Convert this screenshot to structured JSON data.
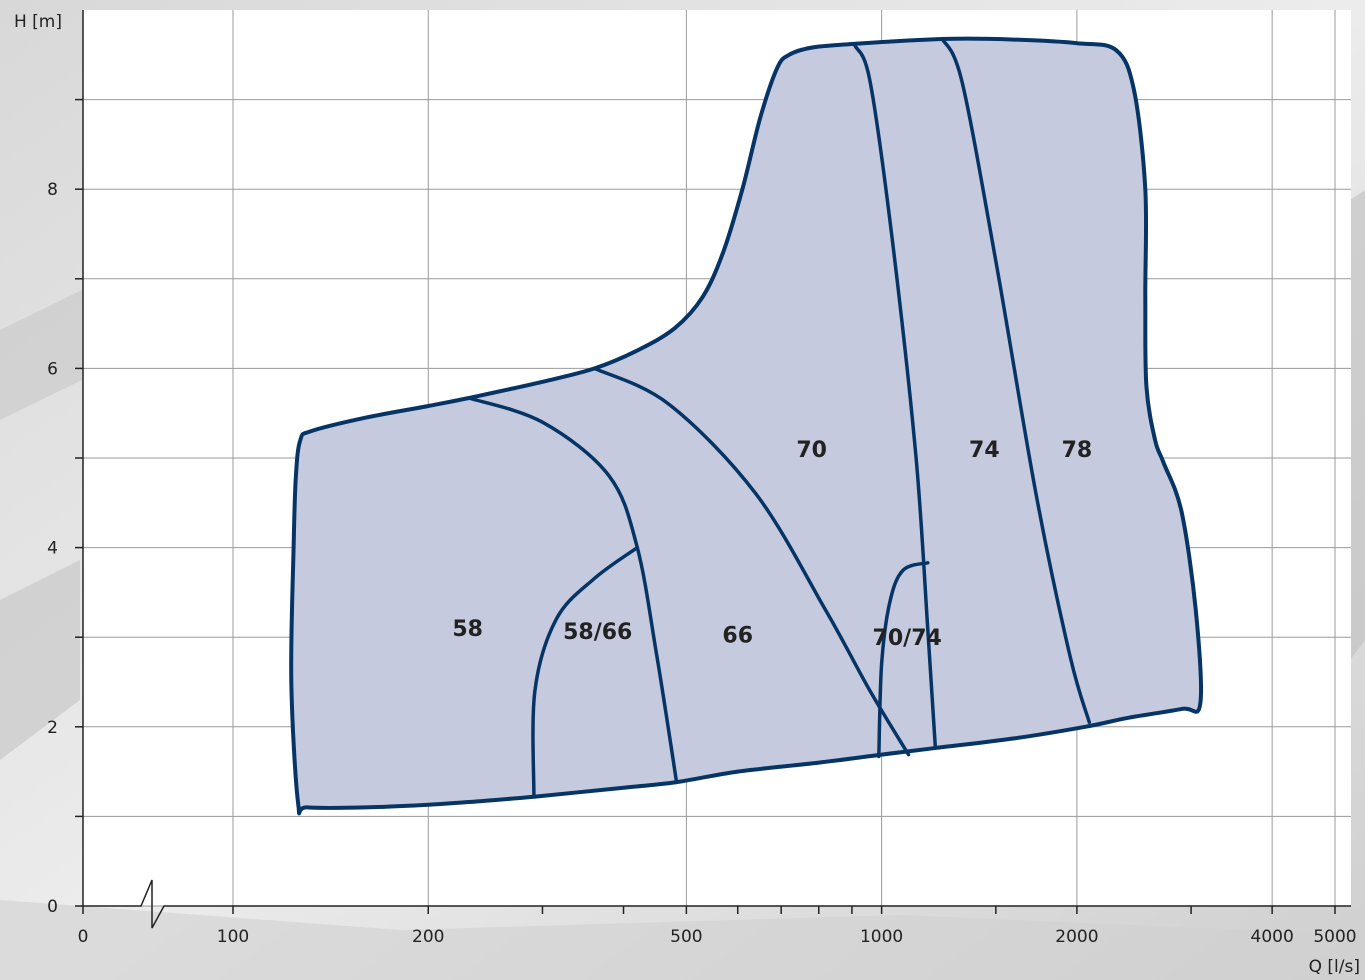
{
  "chart_data": {
    "type": "area",
    "title": "",
    "xlabel": "Q [l/s]",
    "ylabel": "H [m]",
    "x_scale": "log",
    "x_axis_break": true,
    "xlim": [
      0,
      5000
    ],
    "ylim": [
      0,
      10
    ],
    "grid": true,
    "x_ticks": [
      {
        "value": 0,
        "label": "0"
      },
      {
        "value": 100,
        "label": "100"
      },
      {
        "value": 200,
        "label": "200"
      },
      {
        "value": 500,
        "label": "500"
      },
      {
        "value": 1000,
        "label": "1000"
      },
      {
        "value": 2000,
        "label": "2000"
      },
      {
        "value": 4000,
        "label": "4000"
      },
      {
        "value": 5000,
        "label": "5000"
      }
    ],
    "y_ticks": [
      {
        "value": 0,
        "label": "0"
      },
      {
        "value": 2,
        "label": "2"
      },
      {
        "value": 4,
        "label": "4"
      },
      {
        "value": 6,
        "label": "6"
      },
      {
        "value": 8,
        "label": "8"
      }
    ],
    "colors": {
      "fill": "#c5cadf",
      "stroke": "#063565",
      "grid": "#9a9a9a",
      "plot_bg": "#ffffff"
    },
    "envelope": [
      [
        127,
        5.2
      ],
      [
        132,
        5.3
      ],
      [
        160,
        5.45
      ],
      [
        200,
        5.58
      ],
      [
        231,
        5.67
      ],
      [
        300,
        5.85
      ],
      [
        361,
        6.0
      ],
      [
        420,
        6.2
      ],
      [
        480,
        6.45
      ],
      [
        530,
        6.8
      ],
      [
        570,
        7.3
      ],
      [
        610,
        8.0
      ],
      [
        650,
        8.8
      ],
      [
        690,
        9.35
      ],
      [
        720,
        9.5
      ],
      [
        780,
        9.58
      ],
      [
        900,
        9.62
      ],
      [
        1100,
        9.66
      ],
      [
        1300,
        9.68
      ],
      [
        1600,
        9.67
      ],
      [
        2000,
        9.63
      ],
      [
        2300,
        9.55
      ],
      [
        2450,
        9.1
      ],
      [
        2550,
        8.0
      ],
      [
        2550,
        6.8
      ],
      [
        2560,
        5.8
      ],
      [
        2640,
        5.2
      ],
      [
        2720,
        4.95
      ],
      [
        2900,
        4.4
      ],
      [
        3050,
        3.3
      ],
      [
        3100,
        2.26
      ],
      [
        2900,
        2.2
      ],
      [
        2400,
        2.1
      ],
      [
        2060,
        2.0
      ],
      [
        1600,
        1.87
      ],
      [
        1200,
        1.76
      ],
      [
        1000,
        1.69
      ],
      [
        800,
        1.6
      ],
      [
        600,
        1.5
      ],
      [
        480,
        1.38
      ],
      [
        400,
        1.32
      ],
      [
        291,
        1.22
      ],
      [
        240,
        1.17
      ],
      [
        200,
        1.13
      ],
      [
        160,
        1.1
      ],
      [
        130,
        1.1
      ],
      [
        126,
        1.15
      ],
      [
        123,
        2.5
      ],
      [
        124,
        4.0
      ],
      [
        125,
        4.8
      ],
      [
        127,
        5.2
      ]
    ],
    "boundaries": [
      {
        "name": "58 | 66",
        "points": [
          [
            231,
            5.67
          ],
          [
            300,
            5.4
          ],
          [
            380,
            4.8
          ],
          [
            420,
            4.0
          ],
          [
            450,
            2.8
          ],
          [
            483,
            1.38
          ]
        ]
      },
      {
        "name": "58/66 arc",
        "points": [
          [
            420,
            4.0
          ],
          [
            360,
            3.65
          ],
          [
            315,
            3.2
          ],
          [
            292,
            2.4
          ],
          [
            291,
            1.22
          ]
        ]
      },
      {
        "name": "66 | 70",
        "points": [
          [
            361,
            6.0
          ],
          [
            470,
            5.6
          ],
          [
            640,
            4.6
          ],
          [
            820,
            3.3
          ],
          [
            960,
            2.4
          ],
          [
            1100,
            1.69
          ]
        ]
      },
      {
        "name": "70 | 74",
        "points": [
          [
            910,
            9.6
          ],
          [
            960,
            9.2
          ],
          [
            1040,
            7.4
          ],
          [
            1130,
            5.0
          ],
          [
            1180,
            3.0
          ],
          [
            1210,
            1.78
          ]
        ]
      },
      {
        "name": "70/74 arc",
        "points": [
          [
            1178,
            3.83
          ],
          [
            1080,
            3.75
          ],
          [
            1030,
            3.4
          ],
          [
            1000,
            2.7
          ],
          [
            990,
            1.67
          ]
        ]
      },
      {
        "name": "74 | 78",
        "points": [
          [
            1240,
            9.68
          ],
          [
            1330,
            9.2
          ],
          [
            1500,
            7.2
          ],
          [
            1730,
            4.6
          ],
          [
            1950,
            2.8
          ],
          [
            2090,
            2.05
          ]
        ]
      }
    ],
    "regions": [
      {
        "label": "58",
        "x": 230,
        "y": 3.1
      },
      {
        "label": "58/66",
        "x": 365,
        "y": 3.07
      },
      {
        "label": "66",
        "x": 600,
        "y": 3.03
      },
      {
        "label": "70/74",
        "x": 1095,
        "y": 3.0
      },
      {
        "label": "70",
        "x": 780,
        "y": 5.1
      },
      {
        "label": "74",
        "x": 1440,
        "y": 5.1
      },
      {
        "label": "78",
        "x": 2000,
        "y": 5.1
      }
    ]
  }
}
